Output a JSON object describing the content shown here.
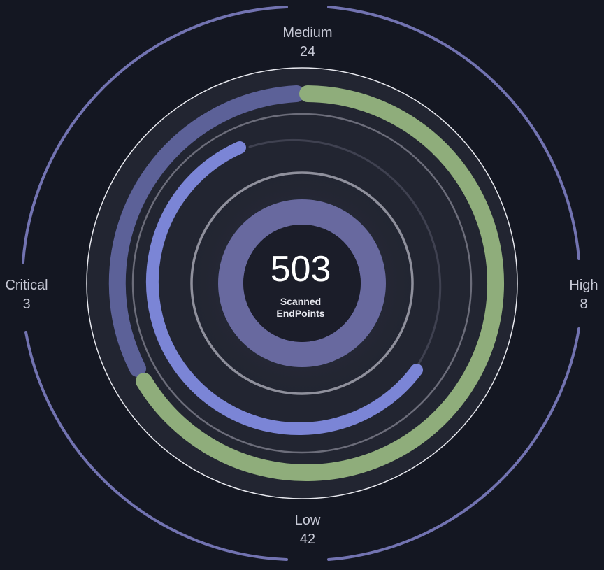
{
  "summary": {
    "total": "503",
    "caption_line1": "Scanned",
    "caption_line2": "EndPoints"
  },
  "severity": {
    "medium": {
      "label": "Medium",
      "count": "24"
    },
    "low": {
      "label": "Low",
      "count": "42"
    },
    "critical": {
      "label": "Critical",
      "count": "3"
    },
    "high": {
      "label": "High",
      "count": "8"
    }
  },
  "colors": {
    "background": "#141722",
    "outer_ring": "#7273b1",
    "segment_purple": "#5c6198",
    "segment_green": "#8fad7b",
    "progress_blue": "#7b85d6",
    "center_ring": "#68699f"
  },
  "icons": []
}
